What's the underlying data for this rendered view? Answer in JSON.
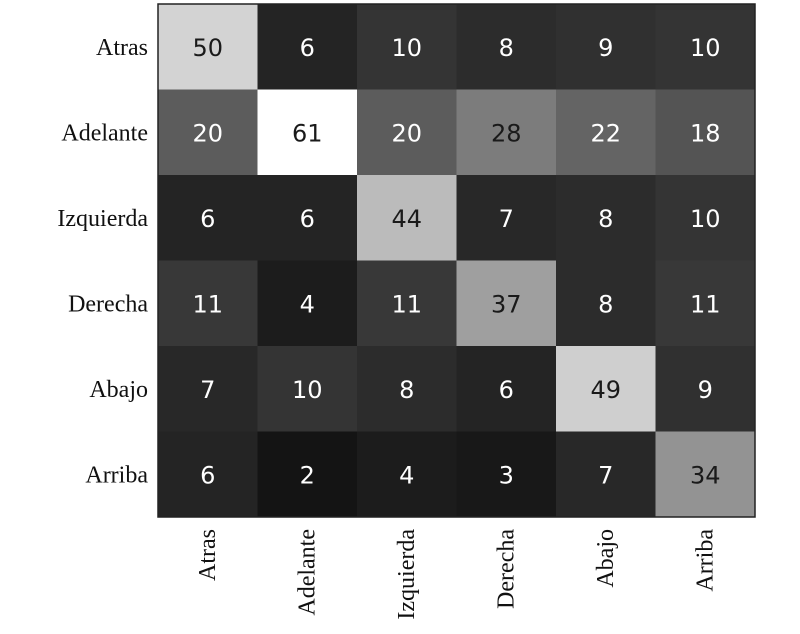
{
  "chart_data": {
    "type": "heatmap",
    "rows": [
      "Atras",
      "Adelante",
      "Izquierda",
      "Derecha",
      "Abajo",
      "Arriba"
    ],
    "columns": [
      "Atras",
      "Adelante",
      "Izquierda",
      "Derecha",
      "Abajo",
      "Arriba"
    ],
    "values": [
      [
        50,
        6,
        10,
        8,
        9,
        10
      ],
      [
        20,
        61,
        20,
        28,
        22,
        18
      ],
      [
        6,
        6,
        44,
        7,
        8,
        10
      ],
      [
        11,
        4,
        11,
        37,
        8,
        11
      ],
      [
        7,
        10,
        8,
        6,
        49,
        9
      ],
      [
        6,
        2,
        4,
        3,
        7,
        34
      ]
    ],
    "color_scale": "grayscale",
    "text_color_light": "#ffffff",
    "text_color_dark": "#1a1a1a",
    "title": "",
    "xlabel": "",
    "ylabel": ""
  }
}
